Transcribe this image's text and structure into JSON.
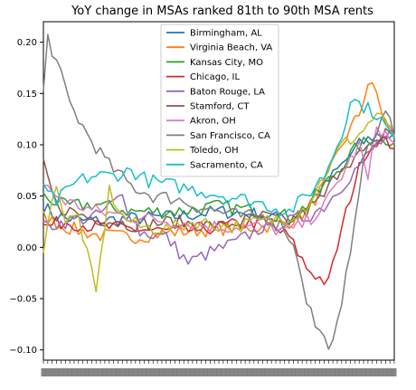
{
  "chart_data": {
    "type": "line",
    "title": "YoY change in MSAs ranked 81th to 90th MSA rents",
    "xlabel": "",
    "ylabel": "",
    "ylim": [
      -0.11,
      0.22
    ],
    "xlim": [
      0,
      80
    ],
    "yticks": [
      -0.1,
      -0.05,
      0.0,
      0.05,
      0.1,
      0.15,
      0.2
    ],
    "ytick_labels": [
      "−0.10",
      "−0.05",
      "0.00",
      "0.05",
      "0.10",
      "0.15",
      "0.20"
    ],
    "xtick_note": "dense overlapping date labels (illegible)",
    "legend_position": "top-center",
    "grid": false,
    "x": [
      0,
      1,
      2,
      3,
      4,
      5,
      6,
      7,
      8,
      9,
      10,
      11,
      12,
      13,
      14,
      15,
      16,
      17,
      18,
      19,
      20,
      21,
      22,
      23,
      24,
      25,
      26,
      27,
      28,
      29,
      30,
      31,
      32,
      33,
      34,
      35,
      36,
      37,
      38,
      39,
      40,
      41,
      42,
      43,
      44,
      45,
      46,
      47,
      48,
      49,
      50,
      51,
      52,
      53,
      54,
      55,
      56,
      57,
      58,
      59,
      60,
      61,
      62,
      63,
      64,
      65,
      66,
      67,
      68,
      69,
      70,
      71,
      72,
      73,
      74,
      75,
      76,
      77,
      78,
      79,
      80
    ],
    "series": [
      {
        "name": "Birmingham, AL",
        "color": "#1f77b4",
        "keypoints": [
          [
            0,
            0.04
          ],
          [
            3,
            0.03
          ],
          [
            10,
            0.025
          ],
          [
            20,
            0.028
          ],
          [
            30,
            0.03
          ],
          [
            40,
            0.035
          ],
          [
            50,
            0.032
          ],
          [
            56,
            0.025
          ],
          [
            60,
            0.04
          ],
          [
            64,
            0.06
          ],
          [
            68,
            0.08
          ],
          [
            72,
            0.1
          ],
          [
            76,
            0.11
          ],
          [
            80,
            0.108
          ]
        ]
      },
      {
        "name": "Virginia Beach, VA",
        "color": "#ff7f0e",
        "keypoints": [
          [
            0,
            0.03
          ],
          [
            5,
            0.02
          ],
          [
            12,
            0.012
          ],
          [
            20,
            0.01
          ],
          [
            30,
            0.015
          ],
          [
            40,
            0.018
          ],
          [
            50,
            0.02
          ],
          [
            56,
            0.025
          ],
          [
            60,
            0.035
          ],
          [
            64,
            0.06
          ],
          [
            68,
            0.1
          ],
          [
            72,
            0.13
          ],
          [
            74,
            0.16
          ],
          [
            76,
            0.15
          ],
          [
            78,
            0.12
          ],
          [
            80,
            0.11
          ]
        ]
      },
      {
        "name": "Kansas City, MO",
        "color": "#2ca02c",
        "keypoints": [
          [
            0,
            0.05
          ],
          [
            5,
            0.04
          ],
          [
            12,
            0.042
          ],
          [
            20,
            0.035
          ],
          [
            30,
            0.035
          ],
          [
            40,
            0.04
          ],
          [
            50,
            0.035
          ],
          [
            56,
            0.03
          ],
          [
            60,
            0.04
          ],
          [
            64,
            0.06
          ],
          [
            68,
            0.08
          ],
          [
            72,
            0.1
          ],
          [
            76,
            0.105
          ],
          [
            80,
            0.105
          ]
        ]
      },
      {
        "name": "Chicago, IL",
        "color": "#d62728",
        "keypoints": [
          [
            0,
            0.02
          ],
          [
            5,
            0.025
          ],
          [
            12,
            0.02
          ],
          [
            20,
            0.018
          ],
          [
            30,
            0.015
          ],
          [
            40,
            0.02
          ],
          [
            50,
            0.025
          ],
          [
            56,
            0.01
          ],
          [
            60,
            -0.02
          ],
          [
            63,
            -0.03
          ],
          [
            65,
            -0.035
          ],
          [
            67,
            0.0
          ],
          [
            70,
            0.05
          ],
          [
            73,
            0.09
          ],
          [
            76,
            0.105
          ],
          [
            80,
            0.1
          ]
        ]
      },
      {
        "name": "Baton Rouge, LA",
        "color": "#9467bd",
        "keypoints": [
          [
            0,
            0.02
          ],
          [
            5,
            0.025
          ],
          [
            12,
            0.03
          ],
          [
            18,
            0.05
          ],
          [
            22,
            0.015
          ],
          [
            28,
            0.01
          ],
          [
            33,
            -0.015
          ],
          [
            38,
            -0.005
          ],
          [
            44,
            0.005
          ],
          [
            50,
            0.02
          ],
          [
            56,
            0.025
          ],
          [
            60,
            0.03
          ],
          [
            64,
            0.04
          ],
          [
            68,
            0.06
          ],
          [
            72,
            0.08
          ],
          [
            76,
            0.1
          ],
          [
            80,
            0.11
          ]
        ]
      },
      {
        "name": "Stamford, CT",
        "color": "#8c564b",
        "keypoints": [
          [
            0,
            0.08
          ],
          [
            3,
            0.04
          ],
          [
            10,
            0.03
          ],
          [
            20,
            0.022
          ],
          [
            30,
            0.025
          ],
          [
            40,
            0.02
          ],
          [
            50,
            0.03
          ],
          [
            56,
            0.025
          ],
          [
            60,
            0.035
          ],
          [
            64,
            0.05
          ],
          [
            68,
            0.08
          ],
          [
            72,
            0.09
          ],
          [
            76,
            0.1
          ],
          [
            78,
            0.115
          ],
          [
            80,
            0.11
          ]
        ]
      },
      {
        "name": "Akron, OH",
        "color": "#e377c2",
        "keypoints": [
          [
            0,
            0.06
          ],
          [
            5,
            0.045
          ],
          [
            12,
            0.035
          ],
          [
            20,
            0.03
          ],
          [
            30,
            0.025
          ],
          [
            40,
            0.02
          ],
          [
            50,
            0.02
          ],
          [
            56,
            0.015
          ],
          [
            60,
            0.025
          ],
          [
            64,
            0.04
          ],
          [
            68,
            0.07
          ],
          [
            72,
            0.1
          ],
          [
            74,
            0.065
          ],
          [
            76,
            0.12
          ],
          [
            80,
            0.1
          ]
        ]
      },
      {
        "name": "San Francisco, CA",
        "color": "#7f7f7f",
        "keypoints": [
          [
            0,
            0.15
          ],
          [
            1,
            0.205
          ],
          [
            3,
            0.18
          ],
          [
            6,
            0.14
          ],
          [
            10,
            0.11
          ],
          [
            15,
            0.08
          ],
          [
            20,
            0.06
          ],
          [
            25,
            0.05
          ],
          [
            30,
            0.048
          ],
          [
            35,
            0.04
          ],
          [
            40,
            0.035
          ],
          [
            45,
            0.03
          ],
          [
            50,
            0.03
          ],
          [
            55,
            0.02
          ],
          [
            58,
            -0.01
          ],
          [
            60,
            -0.05
          ],
          [
            62,
            -0.075
          ],
          [
            64,
            -0.09
          ],
          [
            66,
            -0.095
          ],
          [
            68,
            -0.06
          ],
          [
            70,
            0.0
          ],
          [
            72,
            0.06
          ],
          [
            74,
            0.1
          ],
          [
            76,
            0.11
          ],
          [
            78,
            0.13
          ],
          [
            80,
            0.115
          ]
        ]
      },
      {
        "name": "Toledo, OH",
        "color": "#bcbd22",
        "keypoints": [
          [
            0,
            0.0
          ],
          [
            3,
            0.065
          ],
          [
            5,
            0.025
          ],
          [
            8,
            0.03
          ],
          [
            12,
            -0.045
          ],
          [
            15,
            0.055
          ],
          [
            18,
            0.03
          ],
          [
            22,
            0.02
          ],
          [
            28,
            0.018
          ],
          [
            35,
            0.025
          ],
          [
            42,
            0.02
          ],
          [
            50,
            0.025
          ],
          [
            56,
            0.03
          ],
          [
            60,
            0.04
          ],
          [
            64,
            0.07
          ],
          [
            68,
            0.1
          ],
          [
            72,
            0.11
          ],
          [
            76,
            0.13
          ],
          [
            80,
            0.11
          ]
        ]
      },
      {
        "name": "Sacramento, CA",
        "color": "#17becf",
        "keypoints": [
          [
            0,
            0.055
          ],
          [
            3,
            0.045
          ],
          [
            8,
            0.065
          ],
          [
            12,
            0.07
          ],
          [
            16,
            0.07
          ],
          [
            20,
            0.075
          ],
          [
            24,
            0.065
          ],
          [
            30,
            0.06
          ],
          [
            36,
            0.055
          ],
          [
            42,
            0.05
          ],
          [
            48,
            0.045
          ],
          [
            52,
            0.04
          ],
          [
            56,
            0.035
          ],
          [
            60,
            0.05
          ],
          [
            64,
            0.07
          ],
          [
            68,
            0.11
          ],
          [
            70,
            0.145
          ],
          [
            72,
            0.14
          ],
          [
            76,
            0.13
          ],
          [
            80,
            0.105
          ]
        ]
      }
    ]
  }
}
